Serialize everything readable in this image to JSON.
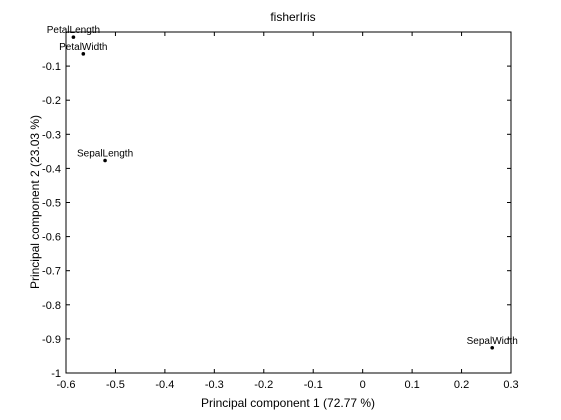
{
  "chart_data": {
    "type": "scatter",
    "title": "fisherIris",
    "xlabel": "Principal component 1 (72.77 %)",
    "ylabel": "Principal component 2 (23.03 %)",
    "xlim": [
      -0.6,
      0.3
    ],
    "ylim": [
      -1,
      0
    ],
    "xticks": [
      -0.6,
      -0.5,
      -0.4,
      -0.3,
      -0.2,
      -0.1,
      0,
      0.1,
      0.2,
      0.3
    ],
    "xticklabels": [
      "-0.6",
      "-0.5",
      "-0.4",
      "-0.3",
      "-0.2",
      "-0.1",
      "0",
      "0.1",
      "0.2",
      "0.3"
    ],
    "yticks": [
      -1,
      -0.9,
      -0.8,
      -0.7,
      -0.6,
      -0.5,
      -0.4,
      -0.3,
      -0.2,
      -0.1
    ],
    "yticklabels": [
      "-1",
      "-0.9",
      "-0.8",
      "-0.7",
      "-0.6",
      "-0.5",
      "-0.4",
      "-0.3",
      "-0.2",
      "-0.1"
    ],
    "grid": false,
    "points": [
      {
        "label": "PetalLength",
        "x": -0.585,
        "y": -0.015
      },
      {
        "label": "PetalWidth",
        "x": -0.565,
        "y": -0.064
      },
      {
        "label": "SepalLength",
        "x": -0.521,
        "y": -0.377
      },
      {
        "label": "SepalWidth",
        "x": 0.262,
        "y": -0.926
      }
    ],
    "marker_color": "#000000"
  }
}
